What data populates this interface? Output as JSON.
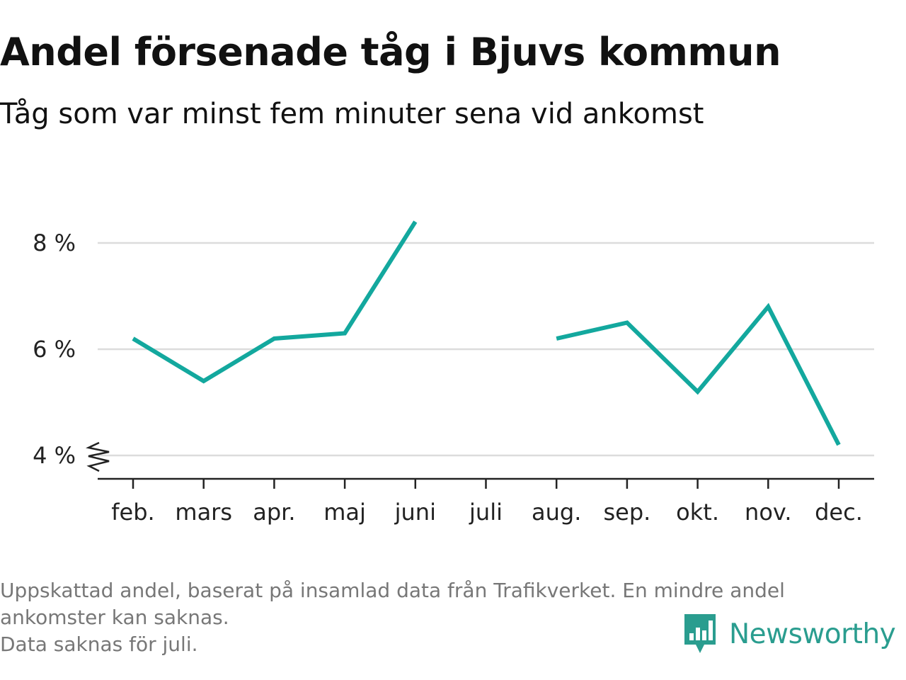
{
  "title": "Andel försenade tåg i Bjuvs kommun",
  "subtitle": "Tåg som var minst fem minuter sena vid ankomst",
  "footnote": {
    "line1": "Uppskattad andel, baserat på insamlad data från Trafikverket. En mindre andel",
    "line2": "ankomster kan saknas.",
    "line3": "Data saknas för juli."
  },
  "brand": {
    "name": "Newsworthy",
    "color": "#2a9d8f"
  },
  "chart_data": {
    "type": "line",
    "categories": [
      "feb.",
      "mars",
      "apr.",
      "maj",
      "juni",
      "juli",
      "aug.",
      "sep.",
      "okt.",
      "nov.",
      "dec."
    ],
    "series": [
      {
        "values": [
          6.2,
          5.4,
          6.2,
          6.3,
          8.4,
          null,
          6.2,
          6.5,
          5.2,
          6.8,
          4.2
        ],
        "color": "#13a89e"
      }
    ],
    "yticks": [
      4,
      6,
      8
    ],
    "ytick_labels": [
      "4 %",
      "6 %",
      "8 %"
    ],
    "ylim": [
      3.6,
      9
    ],
    "y_axis_break": true,
    "grid": true,
    "xlabel": "",
    "ylabel": ""
  }
}
